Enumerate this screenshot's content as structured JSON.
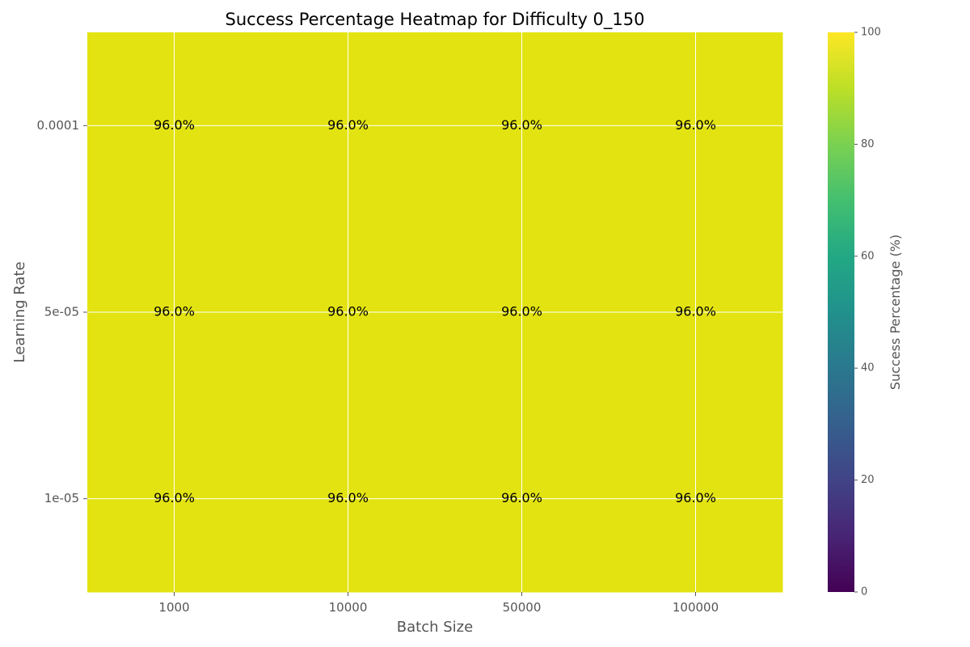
{
  "chart_data": {
    "type": "heatmap",
    "title": "Success Percentage Heatmap for Difficulty 0_150",
    "xlabel": "Batch Size",
    "ylabel": "Learning Rate",
    "x_categories": [
      "1000",
      "10000",
      "50000",
      "100000"
    ],
    "y_categories": [
      "0.0001",
      "5e-05",
      "1e-05"
    ],
    "values": [
      [
        96.0,
        96.0,
        96.0,
        96.0
      ],
      [
        96.0,
        96.0,
        96.0,
        96.0
      ],
      [
        96.0,
        96.0,
        96.0,
        96.0
      ]
    ],
    "value_labels": [
      [
        "96.0%",
        "96.0%",
        "96.0%",
        "96.0%"
      ],
      [
        "96.0%",
        "96.0%",
        "96.0%",
        "96.0%"
      ],
      [
        "96.0%",
        "96.0%",
        "96.0%",
        "96.0%"
      ]
    ],
    "colorbar": {
      "label": "Success Percentage (%)",
      "range": [
        0,
        100
      ],
      "ticks": [
        "0",
        "20",
        "40",
        "60",
        "80",
        "100"
      ],
      "colormap": "viridis"
    },
    "cell_color": "#e3e312",
    "grid": true,
    "grid_color": "#ffffff"
  }
}
